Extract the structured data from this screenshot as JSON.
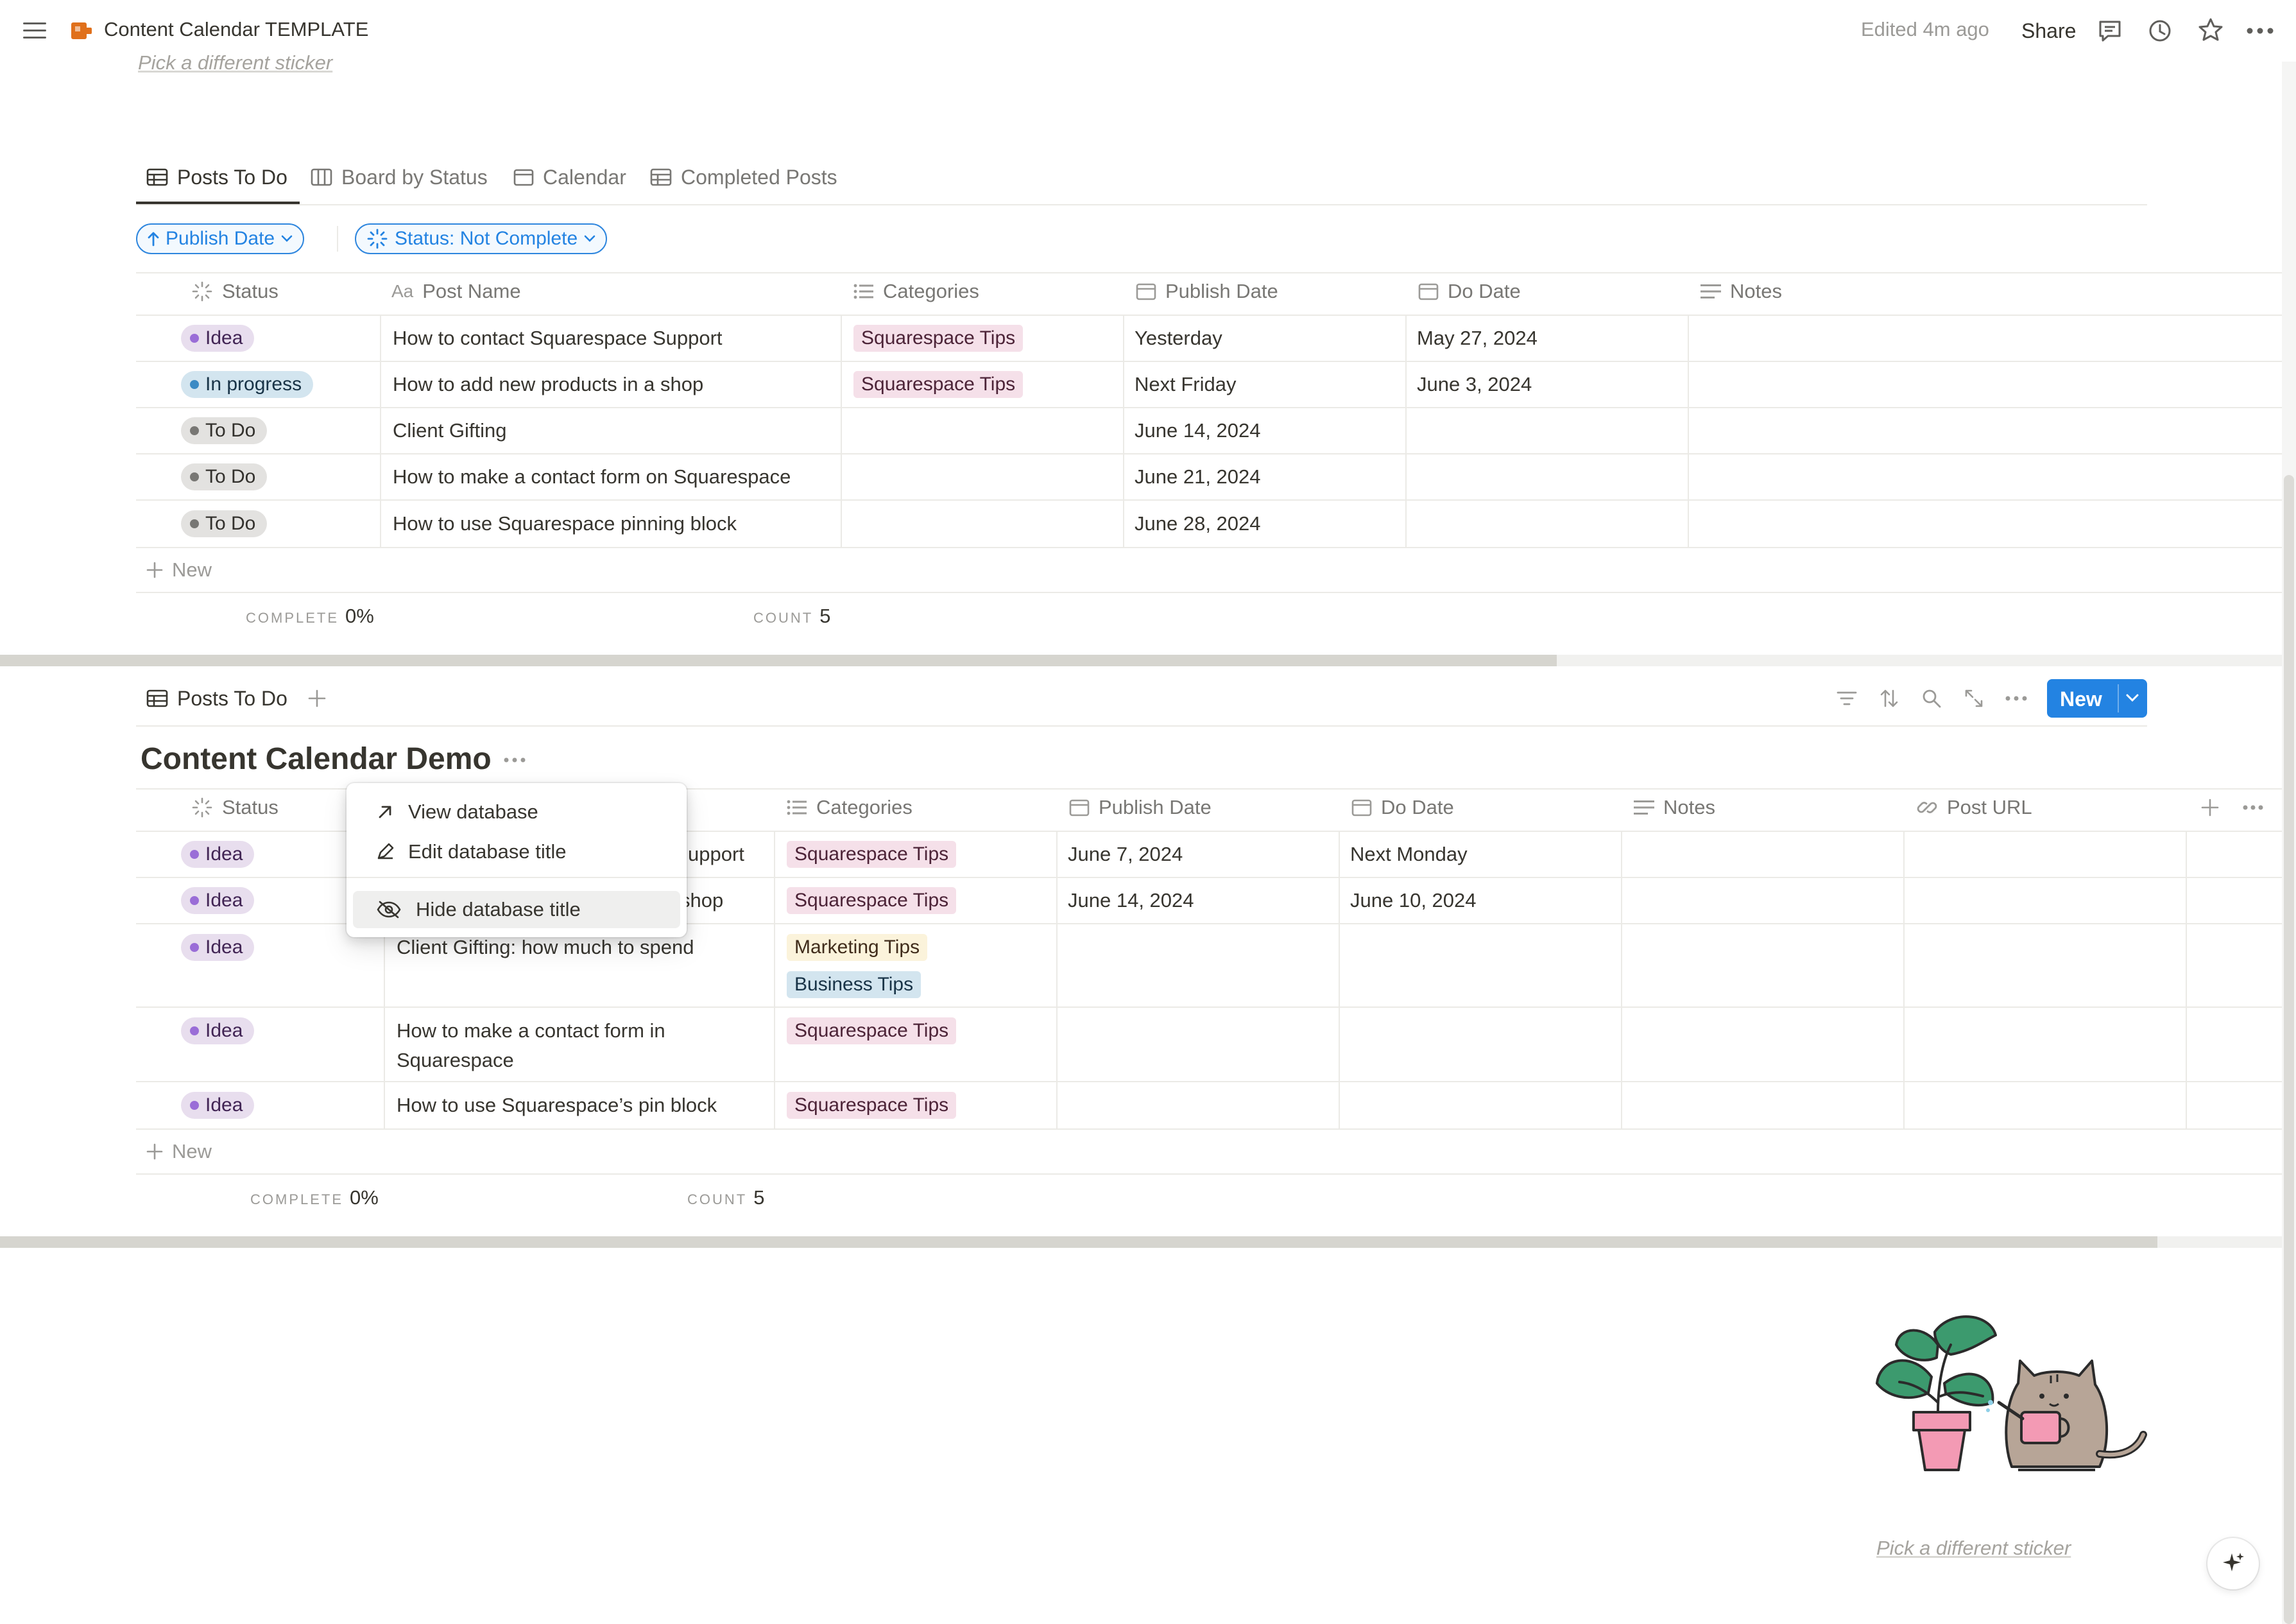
{
  "topbar": {
    "title": "Content Calendar TEMPLATE",
    "edited": "Edited 4m ago",
    "share": "Share"
  },
  "sticker": {
    "link_text": "Pick a different sticker"
  },
  "view1": {
    "tabs": [
      {
        "label": "Posts To Do",
        "icon": "table-icon",
        "active": true
      },
      {
        "label": "Board by Status",
        "icon": "board-icon",
        "active": false
      },
      {
        "label": "Calendar",
        "icon": "calendar-icon",
        "active": false
      },
      {
        "label": "Completed Posts",
        "icon": "table-icon",
        "active": false
      }
    ],
    "filters": {
      "sort": "Publish Date",
      "status": "Status: Not Complete"
    },
    "columns": [
      "Status",
      "Post Name",
      "Categories",
      "Publish Date",
      "Do Date",
      "Notes"
    ],
    "rows": [
      {
        "status": "Idea",
        "name": "How to contact Squarespace Support",
        "category": "Squarespace Tips",
        "publish": "Yesterday",
        "do": "May 27, 2024"
      },
      {
        "status": "In progress",
        "name": "How to add new products in a shop",
        "category": "Squarespace Tips",
        "publish": "Next Friday",
        "do": "June 3, 2024"
      },
      {
        "status": "To Do",
        "name": "Client Gifting",
        "category": "",
        "publish": "June 14, 2024",
        "do": ""
      },
      {
        "status": "To Do",
        "name": "How to make a contact form on Squarespace",
        "category": "",
        "publish": "June 21, 2024",
        "do": ""
      },
      {
        "status": "To Do",
        "name": "How to use Squarespace pinning block",
        "category": "",
        "publish": "June 28, 2024",
        "do": ""
      }
    ],
    "new_label": "New",
    "calc": {
      "complete_label": "COMPLETE",
      "complete_value": "0%",
      "count_label": "COUNT",
      "count_value": "5"
    }
  },
  "view2": {
    "tab": "Posts To Do",
    "new_button": "New",
    "db_title": "Content Calendar Demo",
    "columns": [
      "Status",
      "Categories",
      "Publish Date",
      "Do Date",
      "Notes",
      "Post URL"
    ],
    "rows": [
      {
        "status": "Idea",
        "name_visible": "upport",
        "categories": [
          "Squarespace Tips"
        ],
        "publish": "June 7, 2024",
        "do": "Next Monday"
      },
      {
        "status": "Idea",
        "name_visible": "shop",
        "categories": [
          "Squarespace Tips"
        ],
        "publish": "June 14, 2024",
        "do": "June 10, 2024"
      },
      {
        "status": "Idea",
        "name": "Client Gifting: how much to spend",
        "categories": [
          "Marketing Tips",
          "Business Tips"
        ],
        "publish": "",
        "do": ""
      },
      {
        "status": "Idea",
        "name_line1": "How to make a contact form in",
        "name_line2": "Squarespace",
        "categories": [
          "Squarespace Tips"
        ],
        "publish": "",
        "do": ""
      },
      {
        "status": "Idea",
        "name": "How to use Squarespace’s pin block",
        "categories": [
          "Squarespace Tips"
        ],
        "publish": "",
        "do": ""
      }
    ],
    "new_label": "New",
    "calc": {
      "complete_label": "COMPLETE",
      "complete_value": "0%",
      "count_label": "COUNT",
      "count_value": "5"
    }
  },
  "context_menu": {
    "items": [
      {
        "label": "View database",
        "icon": "arrow-up-right-icon"
      },
      {
        "label": "Edit database title",
        "icon": "pencil-icon"
      },
      {
        "label": "Hide database title",
        "icon": "eye-slash-icon"
      }
    ]
  },
  "colors": {
    "accent": "#2383e2",
    "idea_bg": "#e8deee",
    "in_progress_bg": "#d3e5ef",
    "todo_bg": "#e3e2e0",
    "squarespace_tag": "#f5e0e9",
    "marketing_tag": "#fbf3db",
    "business_tag": "#d3e5ef"
  }
}
